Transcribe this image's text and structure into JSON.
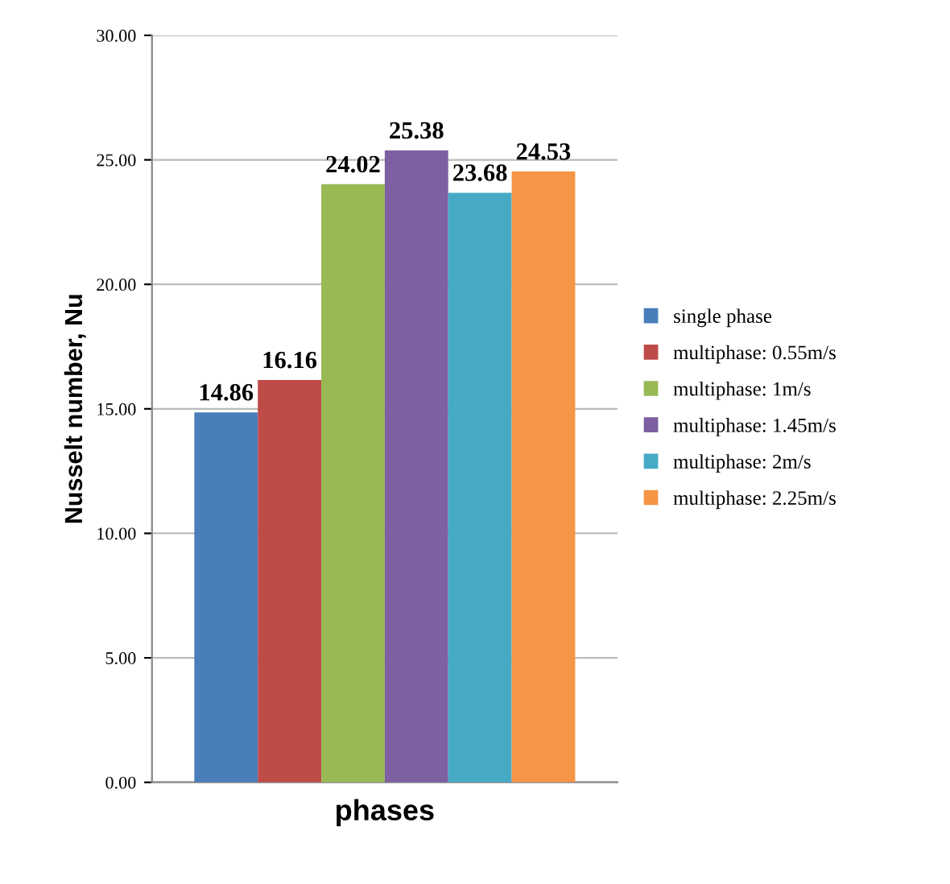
{
  "chart_data": {
    "type": "bar",
    "xlabel": "phases",
    "ylabel": "Nusselt number, Nu",
    "categories": [
      null
    ],
    "series": [
      {
        "name": "single phase",
        "color": "#4a7ebb",
        "values": [
          14.86
        ]
      },
      {
        "name": "multiphase: 0.55m/s",
        "color": "#be4b48",
        "values": [
          16.16
        ]
      },
      {
        "name": "multiphase: 1m/s",
        "color": "#98b954",
        "values": [
          24.02
        ]
      },
      {
        "name": "multiphase: 1.45m/s",
        "color": "#7d60a0",
        "values": [
          25.38
        ]
      },
      {
        "name": "multiphase: 2m/s",
        "color": "#46aac5",
        "values": [
          23.68
        ]
      },
      {
        "name": "multiphase: 2.25m/s",
        "color": "#f69545",
        "values": [
          24.53
        ]
      }
    ],
    "ylim": [
      0,
      30
    ],
    "yticks": [
      {
        "value": 0,
        "label": "0.00"
      },
      {
        "value": 5,
        "label": "5.00"
      },
      {
        "value": 10,
        "label": "10.00"
      },
      {
        "value": 15,
        "label": "15.00"
      },
      {
        "value": 20,
        "label": "20.00"
      },
      {
        "value": 25,
        "label": "25.00"
      },
      {
        "value": 30,
        "label": "30.00"
      }
    ],
    "grid": "y",
    "legend": "right",
    "data_labels": true
  }
}
